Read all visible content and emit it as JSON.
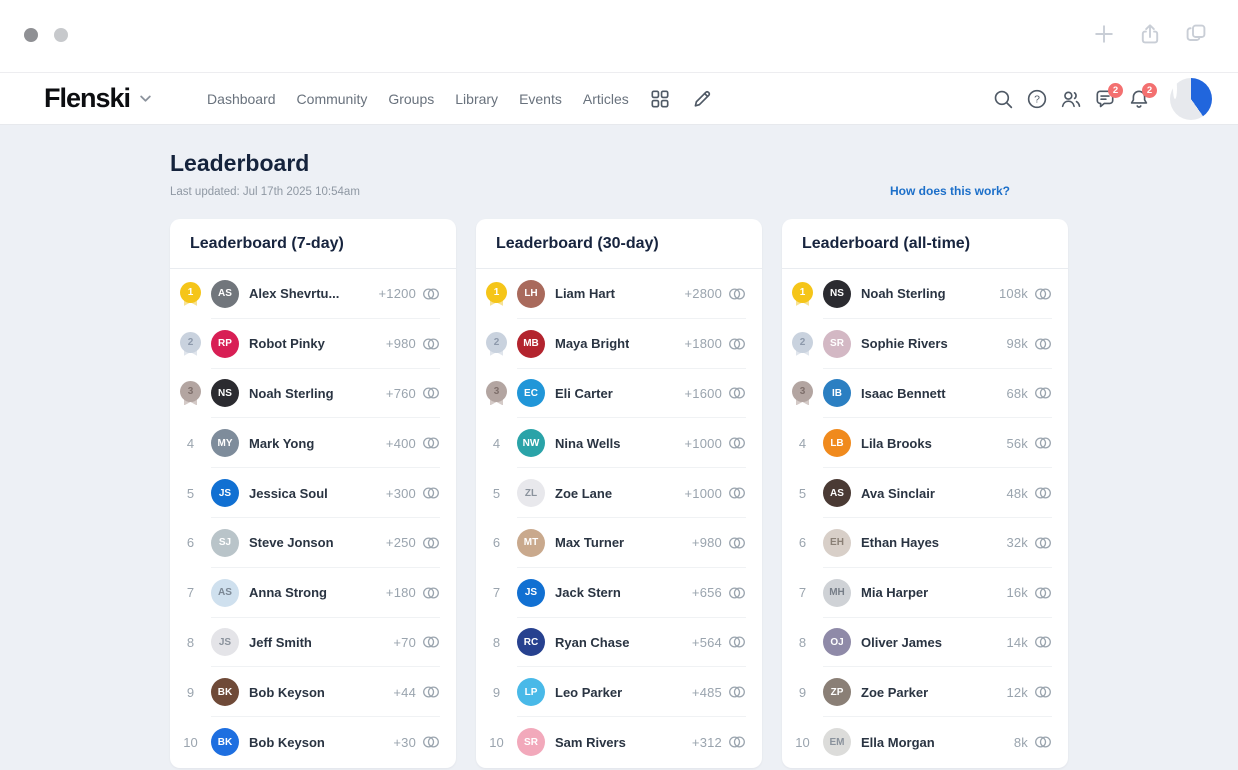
{
  "chrome": {
    "window_controls": [
      "dot-dark",
      "dot-light"
    ],
    "action_icons": [
      "plus-icon",
      "upload-icon",
      "copy-icon"
    ]
  },
  "nav": {
    "logo": "Flenski",
    "items": [
      "Dashboard",
      "Community",
      "Groups",
      "Library",
      "Events",
      "Articles"
    ],
    "tool_icons": [
      "grid-icon",
      "pencil-icon"
    ],
    "right_icons": [
      {
        "name": "search-icon"
      },
      {
        "name": "help-icon"
      },
      {
        "name": "people-icon"
      },
      {
        "name": "chat-icon",
        "badge": "2"
      },
      {
        "name": "bell-icon",
        "badge": "2"
      }
    ]
  },
  "page": {
    "title": "Leaderboard",
    "last_updated": "Last updated: Jul 17th 2025 10:54am",
    "help_link": "How does this work?"
  },
  "colors": {
    "page_bg": "#edf0f5",
    "link_blue": "#1c6fc9",
    "badge_red": "#f37070",
    "medal_gold": "#f5c519",
    "medal_silver": "#c9d2de",
    "medal_bronze": "#b3a5a1",
    "value_gray": "#9aa4ae"
  },
  "boards": [
    {
      "title": "Leaderboard (7-day)",
      "entries": [
        {
          "rank": 1,
          "name": "Alex Shevrtu...",
          "value": "+1200",
          "avatar": {
            "initials": "AS",
            "bg": "#71767c",
            "fg": "#ffffff"
          }
        },
        {
          "rank": 2,
          "name": "Robot Pinky",
          "value": "+980",
          "avatar": {
            "initials": "RP",
            "bg": "#d81f55",
            "fg": "#ffffff"
          }
        },
        {
          "rank": 3,
          "name": "Noah Sterling",
          "value": "+760",
          "avatar": {
            "initials": "NS",
            "bg": "#2b2b30",
            "fg": "#ffffff"
          }
        },
        {
          "rank": 4,
          "name": "Mark Yong",
          "value": "+400",
          "avatar": {
            "initials": "MY",
            "bg": "#7e8c9b",
            "fg": "#ffffff"
          }
        },
        {
          "rank": 5,
          "name": "Jessica Soul",
          "value": "+300",
          "avatar": {
            "initials": "JS",
            "bg": "#1170d2",
            "fg": "#ffffff"
          }
        },
        {
          "rank": 6,
          "name": "Steve Jonson",
          "value": "+250",
          "avatar": {
            "initials": "SJ",
            "bg": "#b9c4c9",
            "fg": "#ffffff"
          }
        },
        {
          "rank": 7,
          "name": "Anna Strong",
          "value": "+180",
          "avatar": {
            "initials": "AS",
            "bg": "#cfe0ee",
            "fg": "#7b8794"
          }
        },
        {
          "rank": 8,
          "name": "Jeff Smith",
          "value": "+70",
          "avatar": {
            "initials": "JS",
            "bg": "#e4e4e8",
            "fg": "#8a929c"
          }
        },
        {
          "rank": 9,
          "name": "Bob Keyson",
          "value": "+44",
          "avatar": {
            "initials": "BK",
            "bg": "#6f4a38",
            "fg": "#ffffff"
          }
        },
        {
          "rank": 10,
          "name": "Bob Keyson",
          "value": "+30",
          "avatar": {
            "initials": "BK",
            "bg": "#1e6fe0",
            "fg": "#ffffff"
          }
        }
      ]
    },
    {
      "title": "Leaderboard (30-day)",
      "entries": [
        {
          "rank": 1,
          "name": "Liam Hart",
          "value": "+2800",
          "avatar": {
            "initials": "LH",
            "bg": "#a96a5c",
            "fg": "#ffffff"
          }
        },
        {
          "rank": 2,
          "name": "Maya Bright",
          "value": "+1800",
          "avatar": {
            "initials": "MB",
            "bg": "#b3242e",
            "fg": "#ffffff"
          }
        },
        {
          "rank": 3,
          "name": "Eli Carter",
          "value": "+1600",
          "avatar": {
            "initials": "EC",
            "bg": "#2196d8",
            "fg": "#ffffff"
          }
        },
        {
          "rank": 4,
          "name": "Nina Wells",
          "value": "+1000",
          "avatar": {
            "initials": "NW",
            "bg": "#2aa3a8",
            "fg": "#ffffff"
          }
        },
        {
          "rank": 5,
          "name": "Zoe Lane",
          "value": "+1000",
          "avatar": {
            "initials": "ZL",
            "bg": "#e8e8ec",
            "fg": "#8a929c"
          }
        },
        {
          "rank": 6,
          "name": "Max Turner",
          "value": "+980",
          "avatar": {
            "initials": "MT",
            "bg": "#c9a98d",
            "fg": "#ffffff"
          }
        },
        {
          "rank": 7,
          "name": "Jack Stern",
          "value": "+656",
          "avatar": {
            "initials": "JS",
            "bg": "#1170d2",
            "fg": "#ffffff"
          }
        },
        {
          "rank": 8,
          "name": "Ryan Chase",
          "value": "+564",
          "avatar": {
            "initials": "RC",
            "bg": "#27418f",
            "fg": "#ffffff"
          }
        },
        {
          "rank": 9,
          "name": "Leo Parker",
          "value": "+485",
          "avatar": {
            "initials": "LP",
            "bg": "#49b9e8",
            "fg": "#ffffff"
          }
        },
        {
          "rank": 10,
          "name": "Sam Rivers",
          "value": "+312",
          "avatar": {
            "initials": "SR",
            "bg": "#f2a9bb",
            "fg": "#ffffff"
          }
        }
      ]
    },
    {
      "title": "Leaderboard (all-time)",
      "entries": [
        {
          "rank": 1,
          "name": "Noah Sterling",
          "value": "108k",
          "avatar": {
            "initials": "NS",
            "bg": "#2b2b30",
            "fg": "#ffffff"
          }
        },
        {
          "rank": 2,
          "name": "Sophie Rivers",
          "value": "98k",
          "avatar": {
            "initials": "SR",
            "bg": "#d3b8c4",
            "fg": "#ffffff"
          }
        },
        {
          "rank": 3,
          "name": "Isaac Bennett",
          "value": "68k",
          "avatar": {
            "initials": "IB",
            "bg": "#2b7fc2",
            "fg": "#ffffff"
          }
        },
        {
          "rank": 4,
          "name": "Lila Brooks",
          "value": "56k",
          "avatar": {
            "initials": "LB",
            "bg": "#f08a1d",
            "fg": "#ffffff"
          }
        },
        {
          "rank": 5,
          "name": "Ava Sinclair",
          "value": "48k",
          "avatar": {
            "initials": "AS",
            "bg": "#4a3a34",
            "fg": "#ffffff"
          }
        },
        {
          "rank": 6,
          "name": "Ethan Hayes",
          "value": "32k",
          "avatar": {
            "initials": "EH",
            "bg": "#d8cfc8",
            "fg": "#8a8076"
          }
        },
        {
          "rank": 7,
          "name": "Mia Harper",
          "value": "16k",
          "avatar": {
            "initials": "MH",
            "bg": "#cfd2d6",
            "fg": "#777e88"
          }
        },
        {
          "rank": 8,
          "name": "Oliver James",
          "value": "14k",
          "avatar": {
            "initials": "OJ",
            "bg": "#8f8aa8",
            "fg": "#ffffff"
          }
        },
        {
          "rank": 9,
          "name": "Zoe Parker",
          "value": "12k",
          "avatar": {
            "initials": "ZP",
            "bg": "#8a7f76",
            "fg": "#ffffff"
          }
        },
        {
          "rank": 10,
          "name": "Ella Morgan",
          "value": "8k",
          "avatar": {
            "initials": "EM",
            "bg": "#dcdcda",
            "fg": "#8a929c"
          }
        }
      ]
    }
  ]
}
